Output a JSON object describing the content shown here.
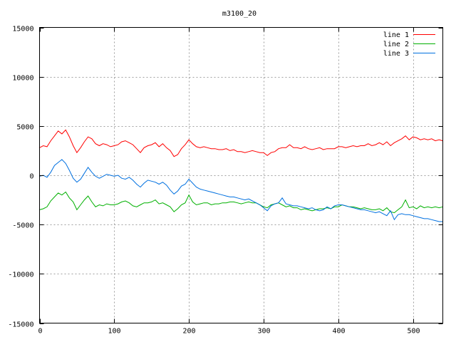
{
  "chart_data": {
    "type": "line",
    "title": "m3100_20",
    "xlabel": "",
    "ylabel": "",
    "xlim": [
      0,
      540
    ],
    "ylim": [
      -15000,
      15000
    ],
    "xticks": [
      0,
      100,
      200,
      300,
      400,
      500
    ],
    "yticks": [
      -15000,
      -10000,
      -5000,
      0,
      5000,
      10000,
      15000
    ],
    "grid": true,
    "legend_position": "top-right",
    "series": [
      {
        "name": "line 1",
        "color": "#ff0000",
        "x": [
          0,
          5,
          10,
          15,
          20,
          25,
          30,
          35,
          40,
          45,
          50,
          55,
          60,
          65,
          70,
          75,
          80,
          85,
          90,
          95,
          100,
          105,
          110,
          115,
          120,
          125,
          130,
          135,
          140,
          145,
          150,
          155,
          160,
          165,
          170,
          175,
          180,
          185,
          190,
          195,
          200,
          205,
          210,
          215,
          220,
          225,
          230,
          235,
          240,
          245,
          250,
          255,
          260,
          265,
          270,
          275,
          280,
          285,
          290,
          295,
          300,
          305,
          310,
          315,
          320,
          325,
          330,
          335,
          340,
          345,
          350,
          355,
          360,
          365,
          370,
          375,
          380,
          385,
          390,
          395,
          400,
          405,
          410,
          415,
          420,
          425,
          430,
          435,
          440,
          445,
          450,
          455,
          460,
          465,
          470,
          475,
          480,
          485,
          490,
          495,
          500,
          505,
          510,
          515,
          520,
          525,
          530,
          535,
          540
        ],
        "y": [
          2800,
          3000,
          2900,
          3500,
          4000,
          4500,
          4200,
          4600,
          3900,
          3000,
          2300,
          2800,
          3400,
          3900,
          3700,
          3200,
          3000,
          3200,
          3100,
          2900,
          3000,
          3100,
          3400,
          3500,
          3300,
          3100,
          2700,
          2300,
          2800,
          3000,
          3100,
          3300,
          2900,
          3200,
          2800,
          2500,
          1900,
          2100,
          2700,
          3100,
          3600,
          3200,
          2900,
          2800,
          2900,
          2800,
          2700,
          2700,
          2600,
          2600,
          2700,
          2500,
          2600,
          2400,
          2400,
          2300,
          2400,
          2500,
          2400,
          2300,
          2300,
          2000,
          2300,
          2400,
          2700,
          2800,
          2800,
          3100,
          2800,
          2800,
          2700,
          2900,
          2700,
          2600,
          2700,
          2800,
          2600,
          2700,
          2700,
          2700,
          2900,
          2900,
          2800,
          2900,
          3000,
          2900,
          3000,
          3000,
          3200,
          3000,
          3100,
          3300,
          3100,
          3400,
          3000,
          3300,
          3500,
          3700,
          4000,
          3600,
          3900,
          3800,
          3600,
          3700,
          3600,
          3700,
          3500,
          3600,
          3500
        ]
      },
      {
        "name": "line 2",
        "color": "#00b000",
        "x": [
          0,
          5,
          10,
          15,
          20,
          25,
          30,
          35,
          40,
          45,
          50,
          55,
          60,
          65,
          70,
          75,
          80,
          85,
          90,
          95,
          100,
          105,
          110,
          115,
          120,
          125,
          130,
          135,
          140,
          145,
          150,
          155,
          160,
          165,
          170,
          175,
          180,
          185,
          190,
          195,
          200,
          205,
          210,
          215,
          220,
          225,
          230,
          235,
          240,
          245,
          250,
          255,
          260,
          265,
          270,
          275,
          280,
          285,
          290,
          295,
          300,
          305,
          310,
          315,
          320,
          325,
          330,
          335,
          340,
          345,
          350,
          355,
          360,
          365,
          370,
          375,
          380,
          385,
          390,
          395,
          400,
          405,
          410,
          415,
          420,
          425,
          430,
          435,
          440,
          445,
          450,
          455,
          460,
          465,
          470,
          475,
          480,
          485,
          490,
          495,
          500,
          505,
          510,
          515,
          520,
          525,
          530,
          535,
          540
        ],
        "y": [
          -3500,
          -3400,
          -3200,
          -2600,
          -2200,
          -1800,
          -2000,
          -1700,
          -2300,
          -2700,
          -3500,
          -3000,
          -2500,
          -2100,
          -2700,
          -3200,
          -3000,
          -3100,
          -2900,
          -3000,
          -3000,
          -2900,
          -2700,
          -2600,
          -2800,
          -3100,
          -3200,
          -3000,
          -2800,
          -2800,
          -2700,
          -2500,
          -2900,
          -2800,
          -3000,
          -3200,
          -3700,
          -3400,
          -3000,
          -2800,
          -2000,
          -2700,
          -3000,
          -2900,
          -2800,
          -2800,
          -3000,
          -2900,
          -2900,
          -2800,
          -2800,
          -2700,
          -2700,
          -2800,
          -2900,
          -2800,
          -2700,
          -2800,
          -2800,
          -3000,
          -3200,
          -3300,
          -3000,
          -2900,
          -2800,
          -3000,
          -3200,
          -3100,
          -3300,
          -3300,
          -3500,
          -3400,
          -3500,
          -3600,
          -3500,
          -3400,
          -3400,
          -3300,
          -3400,
          -3200,
          -3200,
          -3000,
          -3100,
          -3200,
          -3200,
          -3300,
          -3400,
          -3300,
          -3400,
          -3500,
          -3500,
          -3400,
          -3600,
          -3300,
          -3700,
          -3800,
          -3500,
          -3200,
          -2500,
          -3300,
          -3200,
          -3400,
          -3100,
          -3300,
          -3200,
          -3300,
          -3200,
          -3300,
          -3200
        ]
      },
      {
        "name": "line 3",
        "color": "#0070e0",
        "x": [
          0,
          5,
          10,
          15,
          20,
          25,
          30,
          35,
          40,
          45,
          50,
          55,
          60,
          65,
          70,
          75,
          80,
          85,
          90,
          95,
          100,
          105,
          110,
          115,
          120,
          125,
          130,
          135,
          140,
          145,
          150,
          155,
          160,
          165,
          170,
          175,
          180,
          185,
          190,
          195,
          200,
          205,
          210,
          215,
          220,
          225,
          230,
          235,
          240,
          245,
          250,
          255,
          260,
          265,
          270,
          275,
          280,
          285,
          290,
          295,
          300,
          305,
          310,
          315,
          320,
          325,
          330,
          335,
          340,
          345,
          350,
          355,
          360,
          365,
          370,
          375,
          380,
          385,
          390,
          395,
          400,
          405,
          410,
          415,
          420,
          425,
          430,
          435,
          440,
          445,
          450,
          455,
          460,
          465,
          470,
          475,
          480,
          485,
          490,
          495,
          500,
          505,
          510,
          515,
          520,
          525,
          530,
          535,
          540
        ],
        "y": [
          -100,
          0,
          -200,
          300,
          1000,
          1300,
          1600,
          1200,
          500,
          -300,
          -700,
          -400,
          200,
          800,
          300,
          -100,
          -300,
          -100,
          100,
          0,
          -100,
          0,
          -300,
          -400,
          -200,
          -500,
          -900,
          -1200,
          -800,
          -500,
          -600,
          -700,
          -900,
          -700,
          -1000,
          -1500,
          -1900,
          -1600,
          -1100,
          -900,
          -400,
          -800,
          -1200,
          -1400,
          -1500,
          -1600,
          -1700,
          -1800,
          -1900,
          -2000,
          -2100,
          -2200,
          -2200,
          -2300,
          -2400,
          -2500,
          -2400,
          -2600,
          -2800,
          -3000,
          -3300,
          -3600,
          -3100,
          -2900,
          -2800,
          -2300,
          -2900,
          -3000,
          -3100,
          -3100,
          -3200,
          -3300,
          -3400,
          -3300,
          -3500,
          -3600,
          -3500,
          -3200,
          -3400,
          -3100,
          -3000,
          -3000,
          -3100,
          -3200,
          -3300,
          -3400,
          -3500,
          -3500,
          -3600,
          -3700,
          -3800,
          -3700,
          -3900,
          -4100,
          -3600,
          -4500,
          -4000,
          -3900,
          -4000,
          -4000,
          -4100,
          -4200,
          -4300,
          -4400,
          -4400,
          -4500,
          -4600,
          -4700,
          -4700
        ]
      }
    ]
  }
}
